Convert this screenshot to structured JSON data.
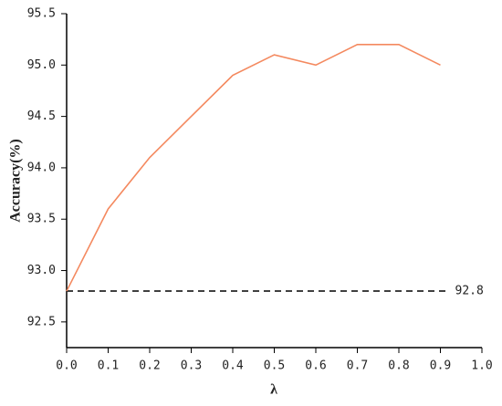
{
  "chart_data": {
    "type": "line",
    "x_label": "λ",
    "y_label": "Accuracy(%)",
    "x": [
      0,
      0.1,
      0.2,
      0.3,
      0.4,
      0.5,
      0.6,
      0.7,
      0.8,
      0.9
    ],
    "series": [
      {
        "color": "#f4895f",
        "values": [
          92.8,
          93.6,
          94.1,
          94.5,
          94.9,
          95.1,
          95.0,
          95.2,
          95.2,
          95.0
        ]
      }
    ],
    "hline": 92.8,
    "xlim": [
      0,
      1
    ],
    "xticks": [
      {
        "value": 0,
        "label": "0.0"
      },
      0.1,
      0.2,
      0.3,
      0.4,
      0.5,
      0.6,
      0.7,
      0.8,
      0.9,
      {
        "value": 1,
        "label": "1.0"
      }
    ],
    "ylim": [
      92.25,
      95.5
    ],
    "yticks": [
      92.5,
      {
        "value": 93,
        "label": "93.0"
      },
      93.5,
      {
        "value": 94,
        "label": "94.0"
      },
      94.5,
      {
        "value": 95,
        "label": "95.0"
      },
      95.5
    ]
  }
}
